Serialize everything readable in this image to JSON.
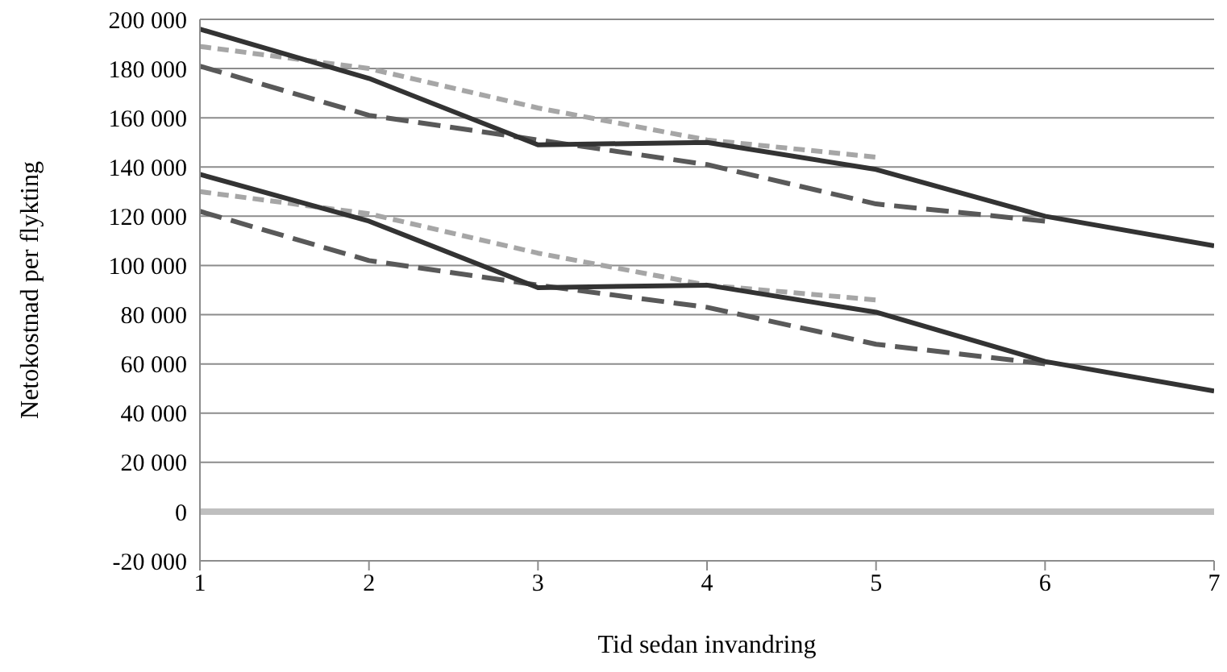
{
  "chart_data": {
    "type": "line",
    "xlabel": "Tid sedan invandring",
    "ylabel": "Netokostnad per flykting",
    "x": [
      1,
      2,
      3,
      4,
      5,
      6,
      7
    ],
    "xlim": [
      1,
      7
    ],
    "xticks": [
      1,
      2,
      3,
      4,
      5,
      6,
      7
    ],
    "ylim": [
      -20000,
      200000
    ],
    "yticks": [
      {
        "value": -20000,
        "label": "-20 000"
      },
      {
        "value": 0,
        "label": "0"
      },
      {
        "value": 20000,
        "label": "20 000"
      },
      {
        "value": 40000,
        "label": "40 000"
      },
      {
        "value": 60000,
        "label": "60 000"
      },
      {
        "value": 80000,
        "label": "80 000"
      },
      {
        "value": 100000,
        "label": "100 000"
      },
      {
        "value": 120000,
        "label": "120 000"
      },
      {
        "value": 140000,
        "label": "140 000"
      },
      {
        "value": 160000,
        "label": "160 000"
      },
      {
        "value": 180000,
        "label": "180 000"
      },
      {
        "value": 200000,
        "label": "200 000"
      }
    ],
    "grid": "y",
    "marker": "none",
    "ref_lines": [
      {
        "axis": "y",
        "value": 0,
        "color": "#bfbfbf"
      }
    ],
    "series": [
      {
        "color": "#a6a6a6",
        "line_style": "dotted",
        "values": [
          189000,
          180000,
          164000,
          151000,
          144000,
          null,
          null
        ]
      },
      {
        "color": "#595959",
        "line_style": "dashed",
        "values": [
          181000,
          161000,
          151000,
          141000,
          125000,
          118000,
          null
        ]
      },
      {
        "color": "#333333",
        "line_style": "solid",
        "values": [
          196000,
          176000,
          149000,
          150000,
          139000,
          120000,
          108000
        ]
      },
      {
        "color": "#a6a6a6",
        "line_style": "dotted",
        "values": [
          130000,
          121000,
          105000,
          92000,
          86000,
          null,
          null
        ]
      },
      {
        "color": "#595959",
        "line_style": "dashed",
        "values": [
          122000,
          102000,
          92000,
          83000,
          68000,
          60000,
          null
        ]
      },
      {
        "color": "#333333",
        "line_style": "solid",
        "values": [
          137000,
          118000,
          91000,
          92000,
          81000,
          61000,
          49000
        ]
      }
    ]
  }
}
